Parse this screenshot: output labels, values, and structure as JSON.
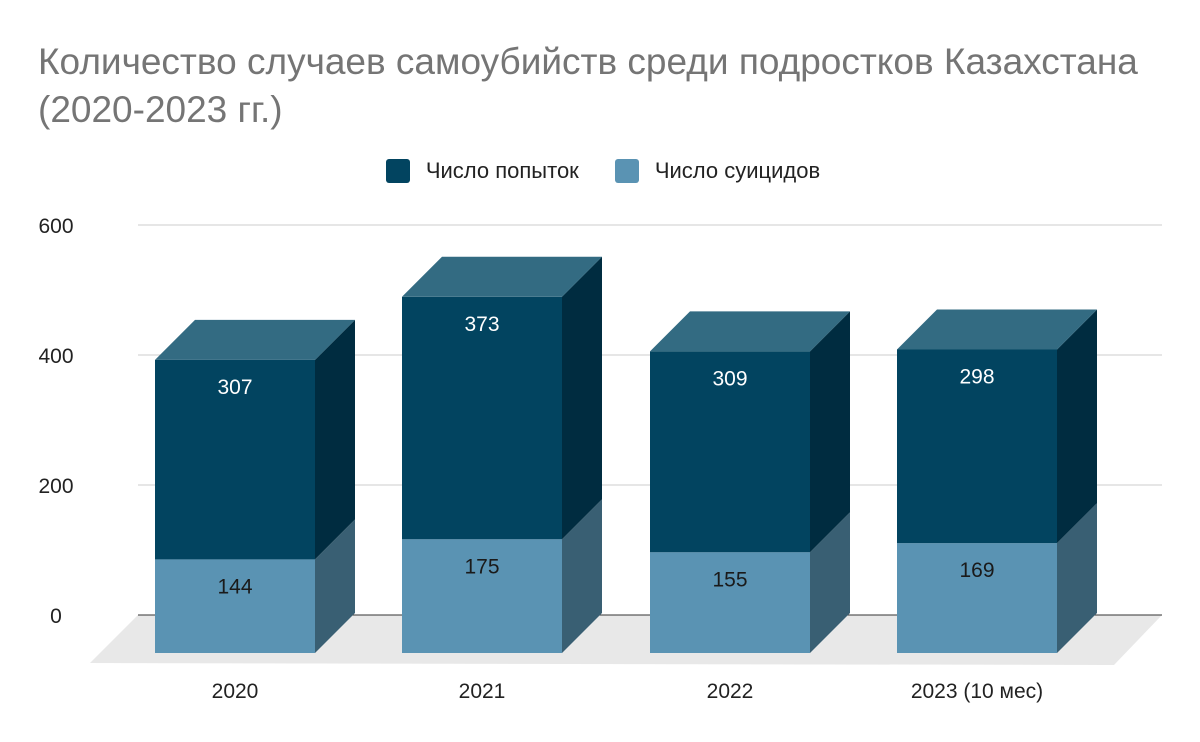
{
  "chart_data": {
    "type": "bar",
    "stacked": true,
    "three_d": true,
    "title": "Количество случаев самоубийств среди подростков Казахстана (2020-2023 гг.)",
    "categories": [
      "2020",
      "2021",
      "2022",
      "2023 (10 мес)"
    ],
    "series": [
      {
        "name": "Число суицидов",
        "values": [
          144,
          175,
          155,
          169
        ],
        "color": "#5a93b3"
      },
      {
        "name": "Число попыток",
        "values": [
          307,
          373,
          309,
          298
        ],
        "color": "#024460"
      }
    ],
    "ylim": [
      0,
      600
    ],
    "yticks": [
      0,
      200,
      400,
      600
    ],
    "grid": true,
    "legend_position": "top"
  }
}
